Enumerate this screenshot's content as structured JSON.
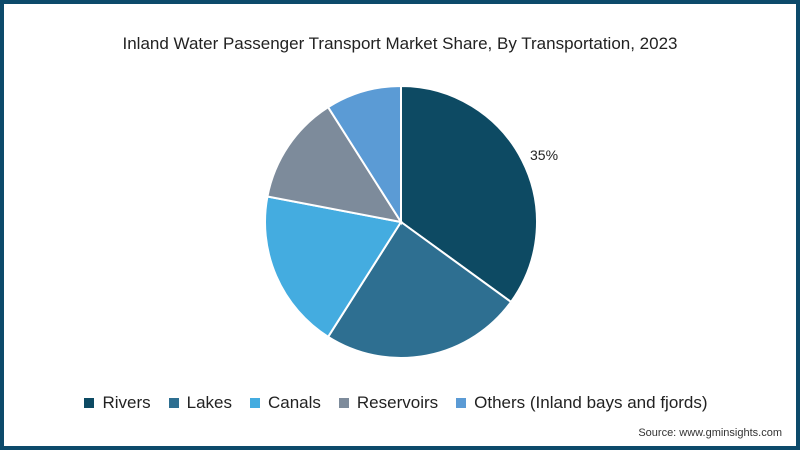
{
  "chart_data": {
    "type": "pie",
    "title": "Inland Water Passenger Transport Market Share, By Transportation, 2023",
    "categories": [
      "Rivers",
      "Lakes",
      "Canals",
      "Reservoirs",
      "Others (Inland bays and fjords)"
    ],
    "values": [
      35,
      24,
      19,
      13,
      9
    ],
    "colors": [
      "#0d4a63",
      "#2e6f91",
      "#44ace0",
      "#7d8b9b",
      "#5b9bd5"
    ],
    "annotations": [
      {
        "category": "Rivers",
        "text": "35%"
      }
    ],
    "legend_position": "bottom"
  },
  "source": "Source: www.gminsights.com"
}
